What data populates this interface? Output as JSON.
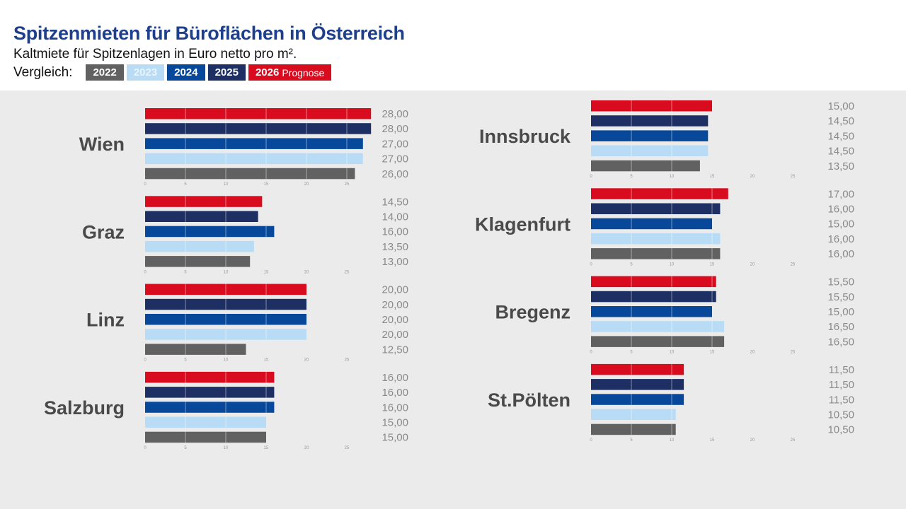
{
  "chart_data": {
    "type": "bar",
    "title": "Spitzenmieten für Büroflächen in Österreich",
    "subtitle": "Kaltmiete für Spitzenlagen in Euro netto pro m².",
    "legend_label": "Vergleich:",
    "series": [
      {
        "name": "2026",
        "note": "Prognose",
        "color": "#d90b1f"
      },
      {
        "name": "2025",
        "color": "#1e2f63"
      },
      {
        "name": "2024",
        "color": "#07489a"
      },
      {
        "name": "2023",
        "color": "#b8dcf5"
      },
      {
        "name": "2022",
        "color": "#616161"
      }
    ],
    "xlim": [
      0,
      25
    ],
    "xticks": [
      "0",
      "5",
      "10",
      "15",
      "20",
      "25"
    ],
    "grid": true,
    "panels": [
      {
        "city": "Wien",
        "column": "left",
        "values": [
          28,
          28,
          27,
          27,
          26
        ],
        "labels": [
          "28,00",
          "28,00",
          "27,00",
          "27,00",
          "26,00"
        ]
      },
      {
        "city": "Graz",
        "column": "left",
        "values": [
          14.5,
          14,
          16,
          13.5,
          13
        ],
        "labels": [
          "14,50",
          "14,00",
          "16,00",
          "13,50",
          "13,00"
        ]
      },
      {
        "city": "Linz",
        "column": "left",
        "values": [
          20,
          20,
          20,
          20,
          12.5
        ],
        "labels": [
          "20,00",
          "20,00",
          "20,00",
          "20,00",
          "12,50"
        ]
      },
      {
        "city": "Salzburg",
        "column": "left",
        "values": [
          16,
          16,
          16,
          15,
          15
        ],
        "labels": [
          "16,00",
          "16,00",
          "16,00",
          "15,00",
          "15,00"
        ]
      },
      {
        "city": "Innsbruck",
        "column": "right",
        "values": [
          15,
          14.5,
          14.5,
          14.5,
          13.5
        ],
        "labels": [
          "15,00",
          "14,50",
          "14,50",
          "14,50",
          "13,50"
        ]
      },
      {
        "city": "Klagenfurt",
        "column": "right",
        "values": [
          17,
          16,
          15,
          16,
          16
        ],
        "labels": [
          "17,00",
          "16,00",
          "15,00",
          "16,00",
          "16,00"
        ]
      },
      {
        "city": "Bregenz",
        "column": "right",
        "values": [
          15.5,
          15.5,
          15,
          16.5,
          16.5
        ],
        "labels": [
          "15,50",
          "15,50",
          "15,00",
          "16,50",
          "16,50"
        ]
      },
      {
        "city": "St.Pölten",
        "column": "right",
        "values": [
          11.5,
          11.5,
          11.5,
          10.5,
          10.5
        ],
        "labels": [
          "11,50",
          "11,50",
          "11,50",
          "10,50",
          "10,50"
        ]
      }
    ]
  }
}
